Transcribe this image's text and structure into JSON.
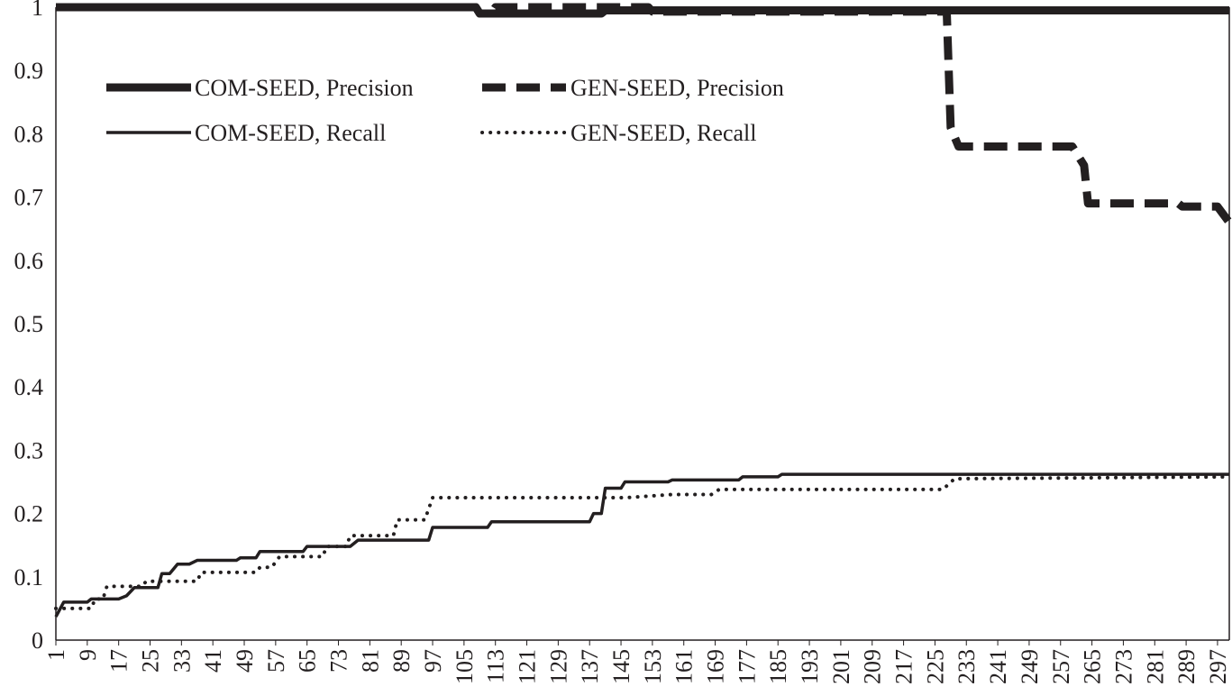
{
  "chart_data": {
    "type": "line",
    "title": "",
    "xlabel": "",
    "ylabel": "",
    "ylim": [
      0,
      1
    ],
    "xlim": [
      1,
      300
    ],
    "y_ticks": [
      "0",
      "0.1",
      "0.2",
      "0.3",
      "0.4",
      "0.5",
      "0.6",
      "0.7",
      "0.8",
      "0.9",
      "1"
    ],
    "x_ticks": [
      "1",
      "9",
      "17",
      "25",
      "33",
      "41",
      "49",
      "57",
      "65",
      "73",
      "81",
      "89",
      "97",
      "105",
      "113",
      "121",
      "129",
      "137",
      "145",
      "153",
      "161",
      "169",
      "177",
      "185",
      "193",
      "201",
      "209",
      "217",
      "225",
      "233",
      "241",
      "249",
      "257",
      "265",
      "273",
      "281",
      "289",
      "297"
    ],
    "grid": false,
    "legend_position": "top-left",
    "series": [
      {
        "name": "COM-SEED, Precision",
        "style": "thick-solid",
        "color": "#231f20",
        "points": [
          [
            1,
            1
          ],
          [
            108,
            1
          ],
          [
            109,
            0.99
          ],
          [
            140,
            0.99
          ],
          [
            141,
            0.995
          ],
          [
            300,
            0.995
          ]
        ]
      },
      {
        "name": "GEN-SEED, Precision",
        "style": "thick-dashed",
        "color": "#231f20",
        "points": [
          [
            1,
            1
          ],
          [
            108,
            1
          ],
          [
            109,
            0.99
          ],
          [
            112,
            0.99
          ],
          [
            113,
            1
          ],
          [
            152,
            1
          ],
          [
            153,
            0.993
          ],
          [
            228,
            0.993
          ],
          [
            229,
            0.81
          ],
          [
            231,
            0.78
          ],
          [
            260,
            0.78
          ],
          [
            263,
            0.75
          ],
          [
            264,
            0.69
          ],
          [
            287,
            0.69
          ],
          [
            288,
            0.685
          ],
          [
            297,
            0.685
          ],
          [
            300,
            0.66
          ]
        ]
      },
      {
        "name": "COM-SEED, Recall",
        "style": "thin-solid",
        "color": "#231f20",
        "points": [
          [
            1,
            0.037
          ],
          [
            3,
            0.06
          ],
          [
            9,
            0.06
          ],
          [
            10,
            0.065
          ],
          [
            17,
            0.065
          ],
          [
            19,
            0.07
          ],
          [
            21,
            0.083
          ],
          [
            27,
            0.083
          ],
          [
            28,
            0.105
          ],
          [
            30,
            0.105
          ],
          [
            32,
            0.12
          ],
          [
            35,
            0.12
          ],
          [
            37,
            0.126
          ],
          [
            47,
            0.126
          ],
          [
            48,
            0.13
          ],
          [
            52,
            0.13
          ],
          [
            53,
            0.14
          ],
          [
            64,
            0.14
          ],
          [
            65,
            0.148
          ],
          [
            76,
            0.148
          ],
          [
            78,
            0.158
          ],
          [
            96,
            0.158
          ],
          [
            97,
            0.178
          ],
          [
            111,
            0.178
          ],
          [
            112,
            0.187
          ],
          [
            137,
            0.187
          ],
          [
            138,
            0.2
          ],
          [
            140,
            0.2
          ],
          [
            141,
            0.24
          ],
          [
            145,
            0.24
          ],
          [
            146,
            0.25
          ],
          [
            157,
            0.25
          ],
          [
            158,
            0.253
          ],
          [
            175,
            0.253
          ],
          [
            176,
            0.258
          ],
          [
            185,
            0.258
          ],
          [
            186,
            0.262
          ],
          [
            300,
            0.262
          ]
        ]
      },
      {
        "name": "GEN-SEED, Recall",
        "style": "dotted",
        "color": "#231f20",
        "points": [
          [
            1,
            0.05
          ],
          [
            10,
            0.05
          ],
          [
            11,
            0.065
          ],
          [
            13,
            0.065
          ],
          [
            14,
            0.085
          ],
          [
            23,
            0.085
          ],
          [
            24,
            0.093
          ],
          [
            37,
            0.093
          ],
          [
            38,
            0.107
          ],
          [
            52,
            0.107
          ],
          [
            53,
            0.115
          ],
          [
            56,
            0.115
          ],
          [
            58,
            0.132
          ],
          [
            69,
            0.132
          ],
          [
            70,
            0.148
          ],
          [
            75,
            0.148
          ],
          [
            76,
            0.165
          ],
          [
            87,
            0.165
          ],
          [
            88,
            0.19
          ],
          [
            95,
            0.19
          ],
          [
            97,
            0.225
          ],
          [
            134,
            0.225
          ],
          [
            146,
            0.225
          ],
          [
            158,
            0.23
          ],
          [
            168,
            0.23
          ],
          [
            170,
            0.238
          ],
          [
            227,
            0.238
          ],
          [
            230,
            0.255
          ],
          [
            300,
            0.258
          ]
        ]
      }
    ]
  }
}
